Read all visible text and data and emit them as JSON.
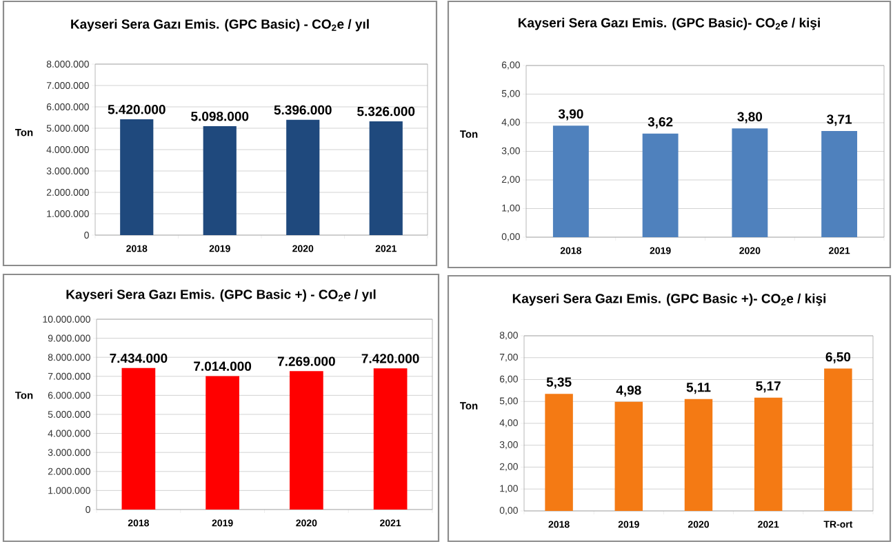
{
  "chart_data": [
    {
      "type": "bar",
      "title": "Kayseri Sera Gazı Emis. (GPC Basic) - CO$_{2}$e / yıl",
      "ylabel": "Ton",
      "categories": [
        "2018",
        "2019",
        "2020",
        "2021"
      ],
      "values": [
        5420000,
        5098000,
        5396000,
        5326000
      ],
      "value_labels": [
        "5.420.000",
        "5.098.000",
        "5.396.000",
        "5.326.000"
      ],
      "color": "#1f497d",
      "ylim": [
        0,
        8000000
      ],
      "yticks": [
        0,
        {
          "value": 1000000,
          "label": "1.000.000"
        },
        {
          "value": 2000000,
          "label": "2.000.000"
        },
        {
          "value": 3000000,
          "label": "3.000.000"
        },
        {
          "value": 4000000,
          "label": "4.000.000"
        },
        {
          "value": 5000000,
          "label": "5.000.000"
        },
        {
          "value": 6000000,
          "label": "6.000.000"
        },
        {
          "value": 7000000,
          "label": "7.000.000"
        },
        {
          "value": 8000000,
          "label": "8.000.000"
        }
      ],
      "grid": "y"
    },
    {
      "type": "bar",
      "title": "Kayseri  Sera Gazı Emis. (GPC Basic)- CO$_{2}$e / kişi",
      "ylabel": "Ton",
      "categories": [
        "2018",
        "2019",
        "2020",
        "2021"
      ],
      "values": [
        3.9,
        3.62,
        3.8,
        3.71
      ],
      "value_labels": [
        "3,90",
        "3,62",
        "3,80",
        "3,71"
      ],
      "color": "#4f81bd",
      "ylim": [
        0,
        6
      ],
      "yticks": [
        {
          "value": 0,
          "label": "0,00"
        },
        {
          "value": 1,
          "label": "1,00"
        },
        {
          "value": 2,
          "label": "2,00"
        },
        {
          "value": 3,
          "label": "3,00"
        },
        {
          "value": 4,
          "label": "4,00"
        },
        {
          "value": 5,
          "label": "5,00"
        },
        {
          "value": 6,
          "label": "6,00"
        }
      ],
      "grid": "y"
    },
    {
      "type": "bar",
      "title": "Kayseri Sera Gazı Emis. (GPC Basic +) - CO$_{2}$e / yıl",
      "ylabel": "Ton",
      "categories": [
        "2018",
        "2019",
        "2020",
        "2021"
      ],
      "values": [
        7434000,
        7014000,
        7269000,
        7420000
      ],
      "value_labels": [
        "7.434.000",
        "7.014.000",
        "7.269.000",
        "7.420.000"
      ],
      "color": "#ff0000",
      "ylim": [
        0,
        10000000
      ],
      "yticks": [
        0,
        {
          "value": 1000000,
          "label": "1.000.000"
        },
        {
          "value": 2000000,
          "label": "2.000.000"
        },
        {
          "value": 3000000,
          "label": "3.000.000"
        },
        {
          "value": 4000000,
          "label": "4.000.000"
        },
        {
          "value": 5000000,
          "label": "5.000.000"
        },
        {
          "value": 6000000,
          "label": "6.000.000"
        },
        {
          "value": 7000000,
          "label": "7.000.000"
        },
        {
          "value": 8000000,
          "label": "8.000.000"
        },
        {
          "value": 9000000,
          "label": "9.000.000"
        },
        {
          "value": 10000000,
          "label": "10.000.000"
        }
      ],
      "grid": "y"
    },
    {
      "type": "bar",
      "title": "Kayseri Sera Gazı Emis. (GPC Basic +)- CO$_{2}$e / kişi",
      "ylabel": "Ton",
      "categories": [
        "2018",
        "2019",
        "2020",
        "2021",
        "TR-ort"
      ],
      "values": [
        5.35,
        4.98,
        5.11,
        5.17,
        6.5
      ],
      "value_labels": [
        "5,35",
        "4,98",
        "5,11",
        "5,17",
        "6,50"
      ],
      "color": "#f47a14",
      "ylim": [
        0,
        8
      ],
      "yticks": [
        {
          "value": 0,
          "label": "0,00"
        },
        {
          "value": 1,
          "label": "1,00"
        },
        {
          "value": 2,
          "label": "2,00"
        },
        {
          "value": 3,
          "label": "3,00"
        },
        {
          "value": 4,
          "label": "4,00"
        },
        {
          "value": 5,
          "label": "5,00"
        },
        {
          "value": 6,
          "label": "6,00"
        },
        {
          "value": 7,
          "label": "7,00"
        },
        {
          "value": 8,
          "label": "8,00"
        }
      ],
      "grid": "y"
    }
  ]
}
